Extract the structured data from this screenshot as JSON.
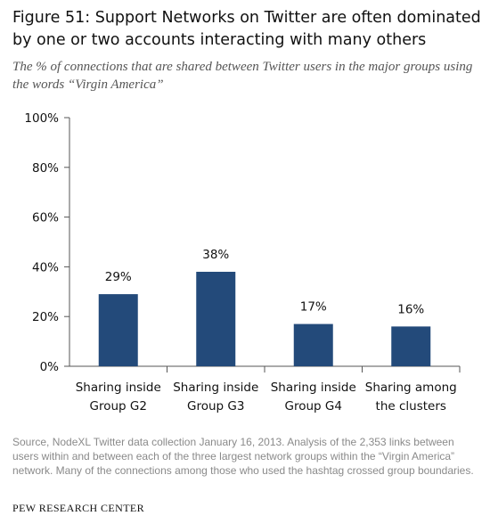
{
  "title": "Figure 51: Support Networks on Twitter are often dominated by one or two accounts interacting with many others",
  "subtitle": "The % of connections that are shared between Twitter users in the major groups using the words “Virgin America”",
  "source": "Source, NodeXL Twitter data collection January 16, 2013. Analysis of the 2,353 links between users within and between each of the three largest network groups within the “Virgin America” network. Many of the connections among those who used the hashtag crossed group boundaries.",
  "brand": "PEW RESEARCH CENTER",
  "colors": {
    "bar": "#234a7a",
    "axis": "#555555",
    "text": "#111111"
  },
  "chart_data": {
    "type": "bar",
    "categories": [
      [
        "Sharing inside",
        "Group G2"
      ],
      [
        "Sharing inside",
        "Group G3"
      ],
      [
        "Sharing inside",
        "Group G4"
      ],
      [
        "Sharing among",
        "the clusters"
      ]
    ],
    "values": [
      29,
      38,
      17,
      16
    ],
    "data_labels": [
      "29%",
      "38%",
      "17%",
      "16%"
    ],
    "yticks": [
      "0%",
      "20%",
      "40%",
      "60%",
      "80%",
      "100%"
    ],
    "ylim": [
      0,
      100
    ],
    "grid": false
  }
}
